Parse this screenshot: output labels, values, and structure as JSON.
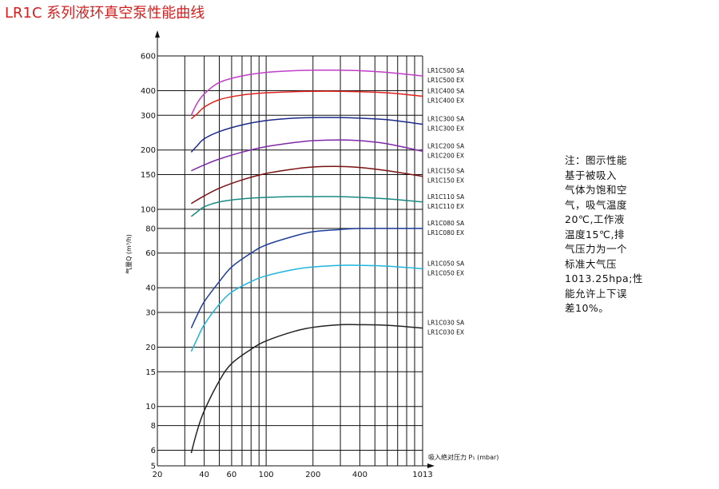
{
  "title": "LR1C 系列液环真空泵性能曲线",
  "note_lines": [
    "注：图示性能",
    "基于被吸入",
    "气体为饱和空",
    "气，吸气温度",
    "20℃,工作液",
    "温度15℃,排",
    "气压力为一个",
    "标准大气压",
    "1013.25hpa;性",
    "能允许上下误",
    "差10%。"
  ],
  "chart_data": {
    "type": "line",
    "title": "LR1C 系列液环真空泵性能曲线",
    "xlabel": "吸入绝对压力 P₁ (mbar)",
    "ylabel": "气量Q (m³/h)",
    "x_scale": "log",
    "y_scale": "log",
    "xlim": [
      20,
      1013
    ],
    "ylim": [
      5,
      600
    ],
    "x_ticks": [
      "20",
      "40",
      "60",
      "100",
      "200",
      "400",
      "1013"
    ],
    "y_ticks": [
      "5",
      "6",
      "8",
      "10",
      "15",
      "20",
      "30",
      "40",
      "60",
      "80",
      "100",
      "150",
      "200",
      "300",
      "400",
      "600"
    ],
    "grid": true,
    "series": [
      {
        "name": "LR1C500 SA / LR1C500 EX",
        "labels": [
          "LR1C500 SA",
          "LR1C500 EX"
        ],
        "color": "#c03ec8",
        "x": [
          33,
          36,
          40,
          50,
          70,
          100,
          150,
          200,
          300,
          400,
          600,
          1013
        ],
        "y": [
          300,
          345,
          385,
          440,
          475,
          495,
          505,
          508,
          508,
          505,
          495,
          475
        ]
      },
      {
        "name": "LR1C400 SA / LR1C400 EX",
        "labels": [
          "LR1C400 SA",
          "LR1C400 EX"
        ],
        "color": "#e0201a",
        "x": [
          33,
          36,
          40,
          50,
          70,
          100,
          150,
          200,
          300,
          400,
          600,
          1013
        ],
        "y": [
          288,
          305,
          330,
          360,
          380,
          390,
          395,
          397,
          397,
          395,
          390,
          375
        ]
      },
      {
        "name": "LR1C300 SA / LR1C300 EX",
        "labels": [
          "LR1C300 SA",
          "LR1C300 EX"
        ],
        "color": "#1b2a8a",
        "x": [
          33,
          36,
          40,
          50,
          70,
          100,
          150,
          200,
          300,
          400,
          600,
          1013
        ],
        "y": [
          195,
          210,
          228,
          248,
          268,
          282,
          290,
          292,
          292,
          290,
          285,
          270
        ]
      },
      {
        "name": "LR1C200 SA / LR1C200 EX",
        "labels": [
          "LR1C200 SA",
          "LR1C200 EX"
        ],
        "color": "#7e2aa8",
        "x": [
          33,
          40,
          50,
          70,
          100,
          150,
          200,
          300,
          400,
          600,
          1013
        ],
        "y": [
          157,
          168,
          180,
          195,
          208,
          218,
          223,
          225,
          223,
          215,
          197
        ]
      },
      {
        "name": "LR1C150 SA / LR1C150 EX",
        "labels": [
          "LR1C150 SA",
          "LR1C150 EX"
        ],
        "color": "#7a1010",
        "x": [
          33,
          40,
          50,
          70,
          100,
          150,
          200,
          300,
          400,
          600,
          1013
        ],
        "y": [
          107,
          117,
          128,
          141,
          152,
          160,
          164,
          165,
          163,
          157,
          147
        ]
      },
      {
        "name": "LR1C110 SA / LR1C110 EX",
        "labels": [
          "LR1C110 SA",
          "LR1C110 EX"
        ],
        "color": "#1a8a84",
        "x": [
          33,
          36,
          40,
          50,
          70,
          100,
          150,
          200,
          300,
          400,
          600,
          1013
        ],
        "y": [
          92,
          97,
          103,
          109,
          113,
          115,
          116,
          116,
          116,
          115,
          113,
          109
        ]
      },
      {
        "name": "LR1C080 SA / LR1C080 EX",
        "labels": [
          "LR1C080 SA",
          "LR1C080 EX"
        ],
        "color": "#1d3d9c",
        "x": [
          33,
          36,
          40,
          50,
          60,
          80,
          100,
          150,
          200,
          300,
          400,
          600,
          1013
        ],
        "y": [
          25,
          29,
          34,
          43,
          51,
          60,
          66,
          73,
          77,
          79,
          80,
          80,
          80
        ]
      },
      {
        "name": "LR1C050 SA / LR1C050 EX",
        "labels": [
          "LR1C050 SA",
          "LR1C050 EX"
        ],
        "color": "#1fb4dc",
        "x": [
          33,
          36,
          40,
          50,
          60,
          80,
          100,
          150,
          200,
          300,
          400,
          600,
          1013
        ],
        "y": [
          19,
          22,
          26,
          33,
          38,
          43,
          46,
          49.5,
          51,
          52,
          52,
          51.5,
          50
        ]
      },
      {
        "name": "LR1C030 SA / LR1C030 EX",
        "labels": [
          "LR1C030 SA",
          "LR1C030 EX"
        ],
        "color": "#222222",
        "x": [
          33,
          36,
          40,
          50,
          60,
          80,
          100,
          150,
          200,
          300,
          400,
          600,
          1013
        ],
        "y": [
          5.8,
          7.5,
          9.5,
          13.5,
          16.5,
          19.5,
          21.5,
          24,
          25.2,
          26,
          26,
          25.8,
          25
        ]
      }
    ]
  }
}
